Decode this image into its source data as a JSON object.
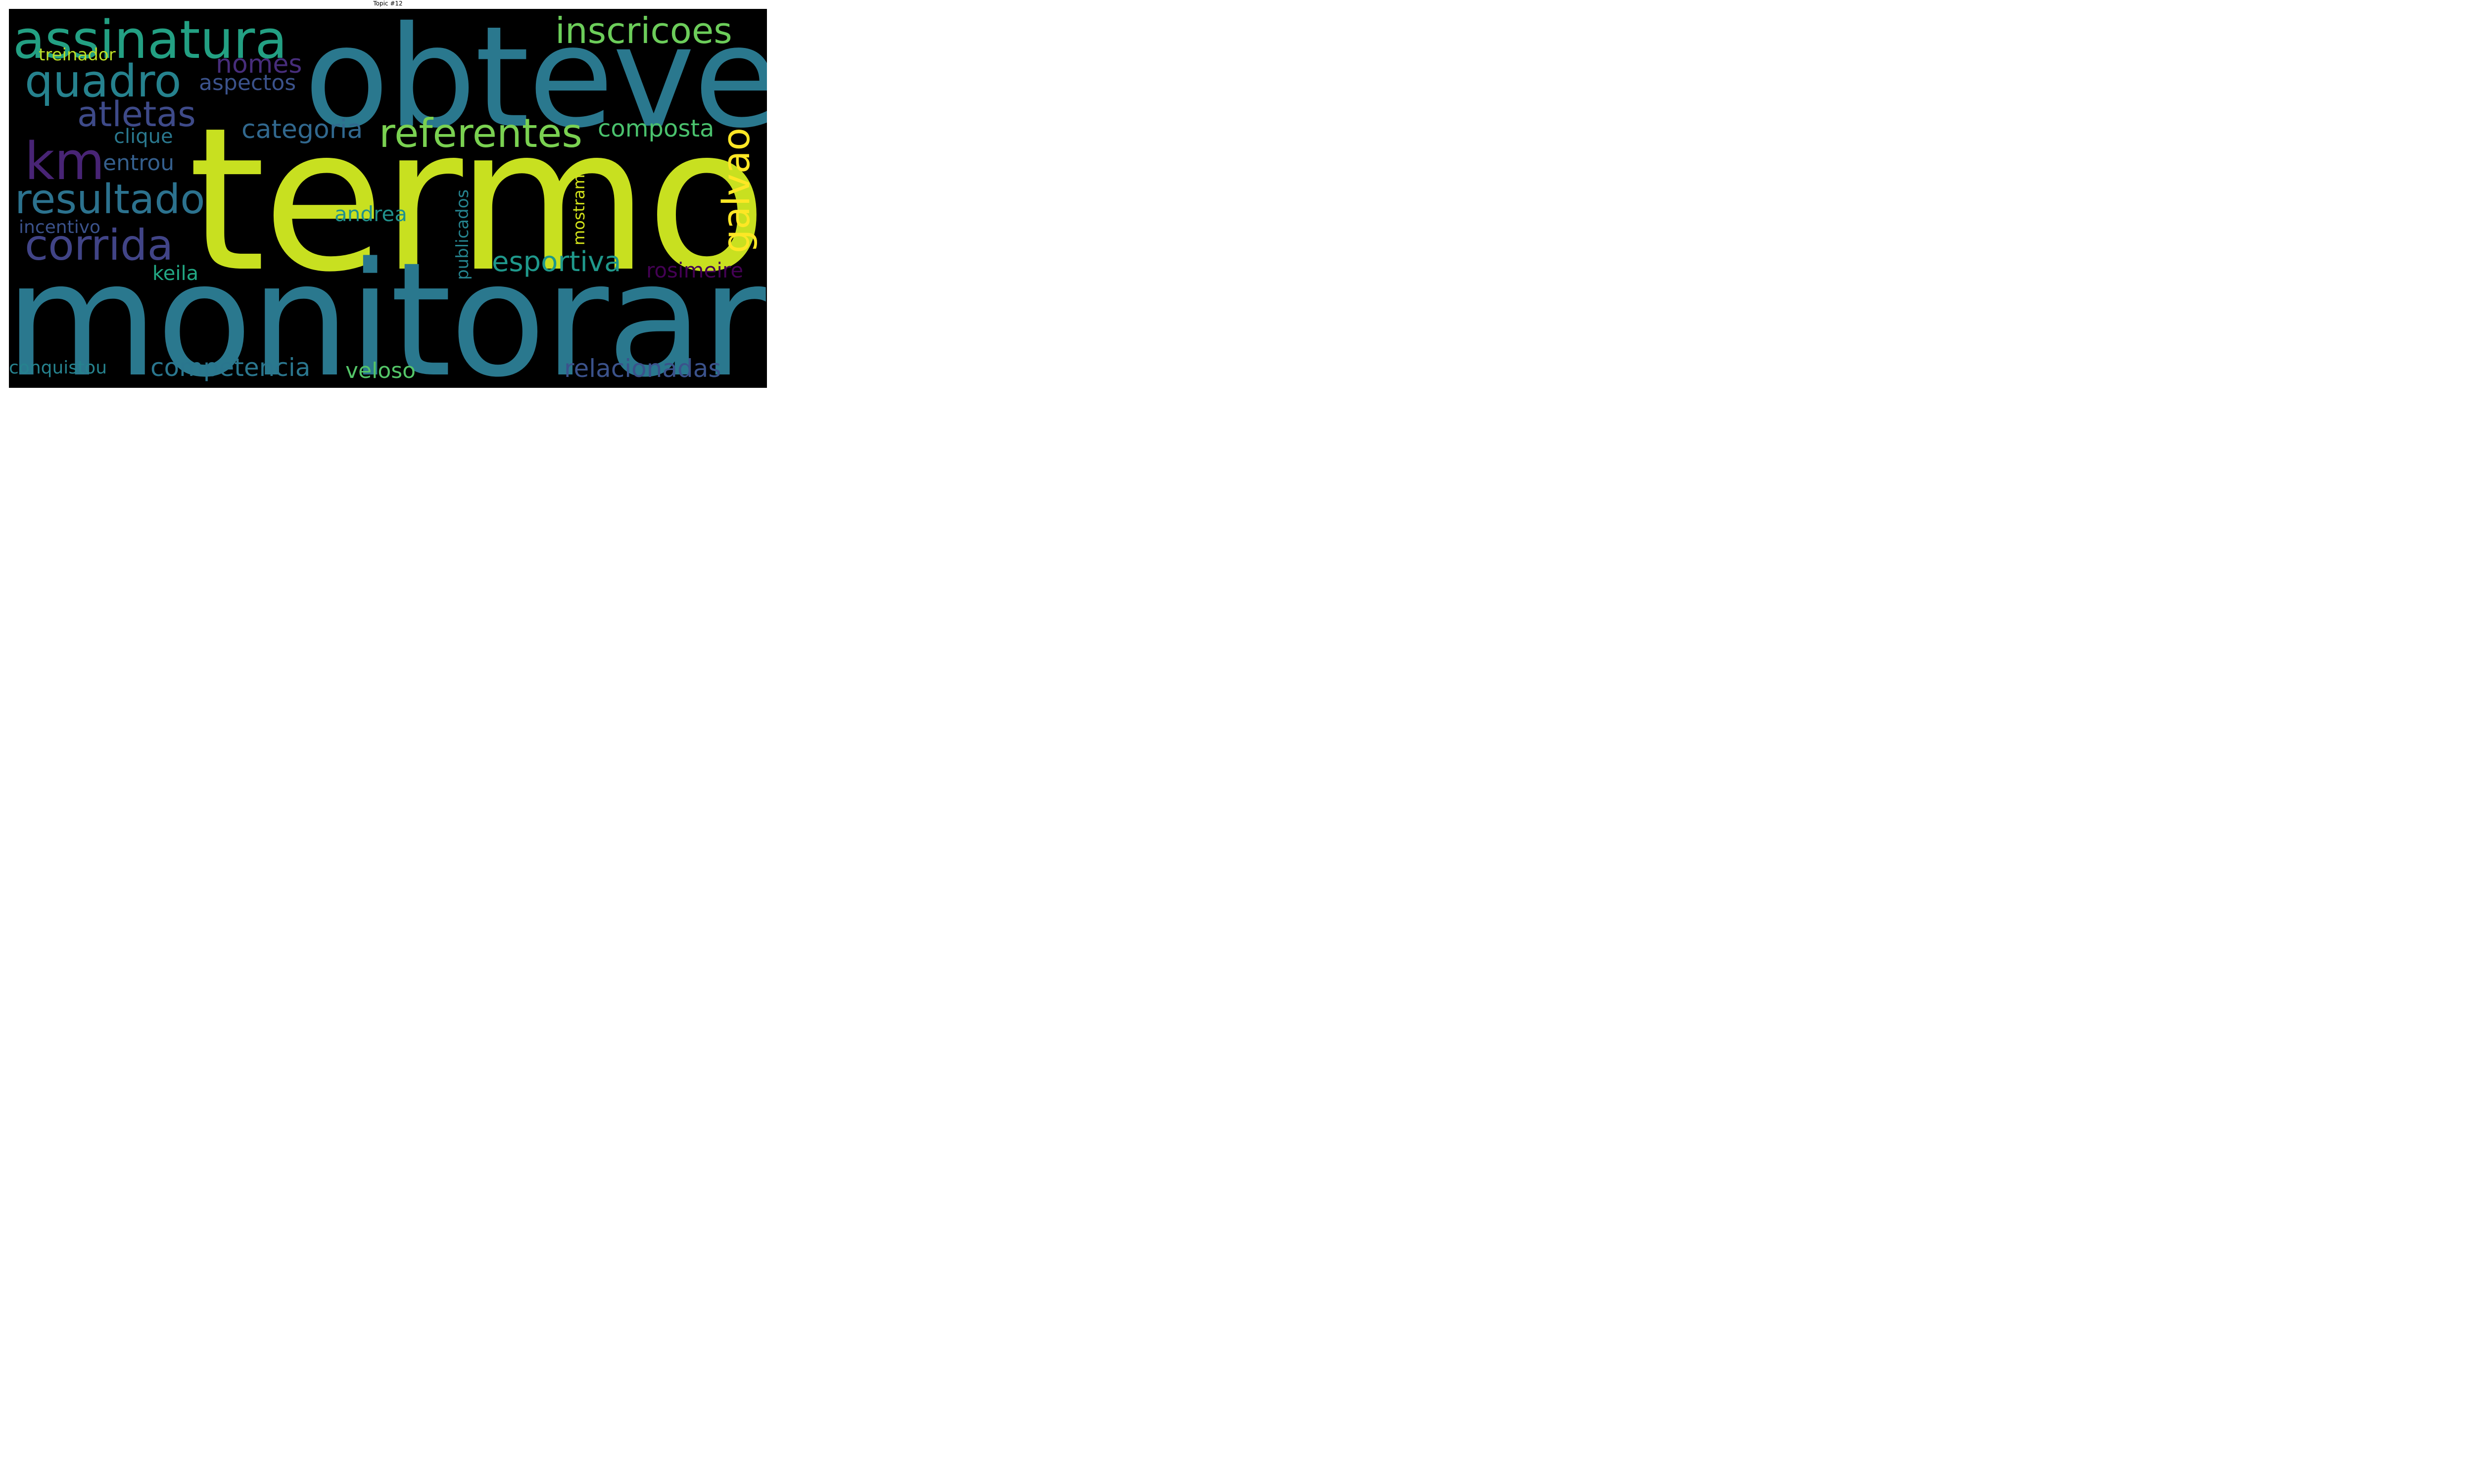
{
  "title": "Topic #12",
  "cloud": {
    "background": "#000000",
    "words": [
      {
        "text": "termo",
        "color": "#c8e020"
      },
      {
        "text": "monitorar",
        "color": "#2a788e"
      },
      {
        "text": "obteve",
        "color": "#2a788e"
      },
      {
        "text": "assinatura",
        "color": "#23a083"
      },
      {
        "text": "quadro",
        "color": "#26828e"
      },
      {
        "text": "km",
        "color": "#482475"
      },
      {
        "text": "referentes",
        "color": "#7ad151"
      },
      {
        "text": "inscricoes",
        "color": "#6ccd5a"
      },
      {
        "text": "atletas",
        "color": "#3e4a89"
      },
      {
        "text": "resultado",
        "color": "#2c728e"
      },
      {
        "text": "corrida",
        "color": "#414487"
      },
      {
        "text": "galvao",
        "color": "#fde725"
      },
      {
        "text": "categoria",
        "color": "#31688e"
      },
      {
        "text": "composta",
        "color": "#4ac16d"
      },
      {
        "text": "nomes",
        "color": "#472d7b"
      },
      {
        "text": "aspectos",
        "color": "#3b528b"
      },
      {
        "text": "treinador",
        "color": "#bddf26"
      },
      {
        "text": "clique",
        "color": "#2a788e"
      },
      {
        "text": "entrou",
        "color": "#355f8d"
      },
      {
        "text": "andrea",
        "color": "#21918c"
      },
      {
        "text": "incentivo",
        "color": "#3b528b"
      },
      {
        "text": "esportiva",
        "color": "#1f988b"
      },
      {
        "text": "keila",
        "color": "#22a884"
      },
      {
        "text": "publicados",
        "color": "#25838e"
      },
      {
        "text": "mostram",
        "color": "#d2e21b"
      },
      {
        "text": "rosimeire",
        "color": "#440154"
      },
      {
        "text": "competencia",
        "color": "#2a768e"
      },
      {
        "text": "veloso",
        "color": "#54c568"
      },
      {
        "text": "relacionadas",
        "color": "#3b528b"
      },
      {
        "text": "conquistou",
        "color": "#26828e"
      }
    ]
  }
}
